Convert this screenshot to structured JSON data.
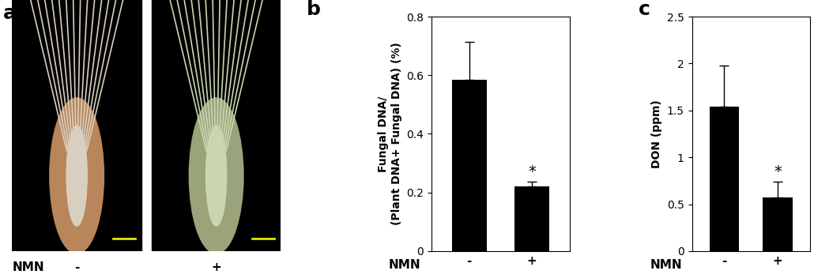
{
  "image_panel": {
    "title": "a",
    "xlabel": "NMN",
    "categories": [
      "-",
      "+"
    ]
  },
  "chart_data": [
    {
      "type": "bar",
      "title": "b",
      "categories": [
        "-",
        "+"
      ],
      "xlabel": "NMN",
      "ylabel": "Fungal DNA/\n(Plant DNA+ Fungal DNA) (%)",
      "values": [
        0.585,
        0.222
      ],
      "errors": [
        0.13,
        0.015
      ],
      "color": "#000000",
      "ylim": [
        0,
        0.8
      ],
      "yticks": [
        0,
        0.2,
        0.4,
        0.6,
        0.8
      ],
      "grid": false,
      "annotations": [
        {
          "text": "*",
          "category": "+"
        }
      ]
    },
    {
      "type": "bar",
      "title": "c",
      "categories": [
        "-",
        "+"
      ],
      "xlabel": "NMN",
      "ylabel": "DON (ppm)",
      "values": [
        1.54,
        0.57
      ],
      "errors": [
        0.44,
        0.17
      ],
      "color": "#000000",
      "ylim": [
        0,
        2.5
      ],
      "yticks": [
        0,
        0.5,
        1,
        1.5,
        2,
        2.5
      ],
      "grid": false,
      "annotations": [
        {
          "text": "*",
          "category": "+"
        }
      ]
    }
  ]
}
